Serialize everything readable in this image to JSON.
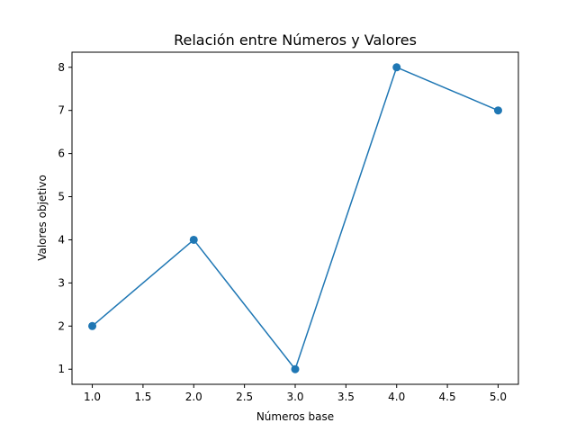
{
  "chart_data": {
    "type": "line",
    "title": "Relación entre Números y Valores",
    "xlabel": "Números base",
    "ylabel": "Valores objetivo",
    "x": [
      1.0,
      2.0,
      3.0,
      4.0,
      5.0
    ],
    "series": [
      {
        "values": [
          2,
          4,
          1,
          8,
          7
        ],
        "color": "#1f77b4",
        "marker": "circle"
      }
    ],
    "xlim": [
      0.8,
      5.2
    ],
    "ylim": [
      0.65,
      8.35
    ],
    "x_ticks": [
      "1.0",
      "1.5",
      "2.0",
      "2.5",
      "3.0",
      "3.5",
      "4.0",
      "4.5",
      "5.0"
    ],
    "y_ticks": [
      "1",
      "2",
      "3",
      "4",
      "5",
      "6",
      "7",
      "8"
    ],
    "grid": false,
    "legend": "none"
  }
}
